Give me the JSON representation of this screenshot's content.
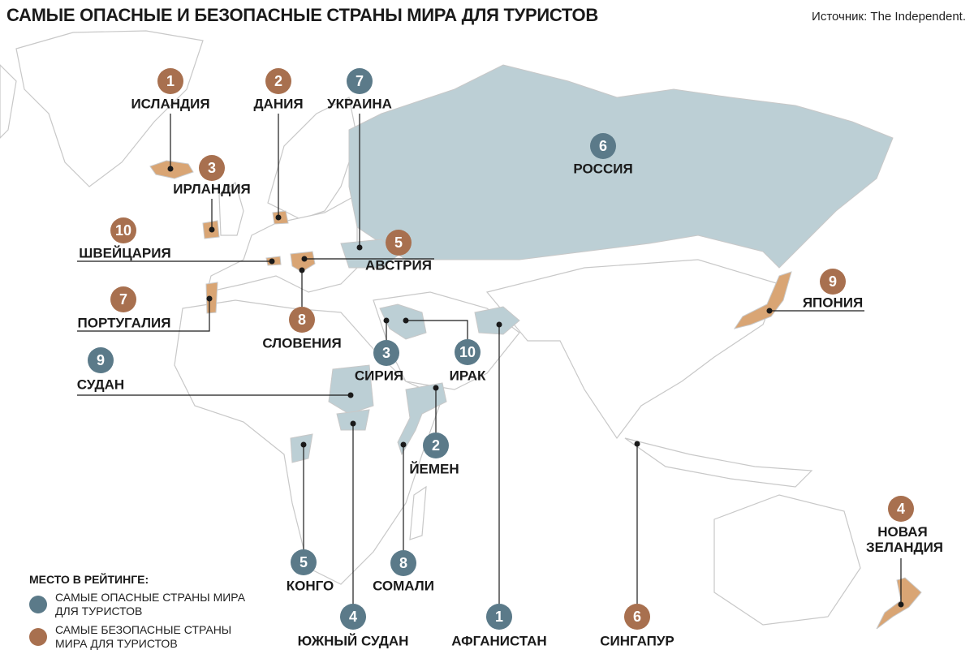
{
  "title": "САМЫЕ ОПАСНЫЕ И БЕЗОПАСНЫЕ СТРАНЫ МИРА ДЛЯ ТУРИСТОВ",
  "source": "Источник: The Independent.",
  "colors": {
    "dangerous": "#5b7a89",
    "safe": "#a8704f",
    "dangerous_fill": "#bccfd5",
    "safe_fill": "#d9a574",
    "border": "#c8c8c8"
  },
  "legend": {
    "title": "МЕСТО В РЕЙТИНГЕ:",
    "dangerous": "САМЫЕ ОПАСНЫЕ СТРАНЫ МИРА ДЛЯ ТУРИСТОВ",
    "safe": "САМЫЕ БЕЗОПАСНЫЕ СТРАНЫ МИРА ДЛЯ ТУРИСТОВ"
  },
  "markers": [
    {
      "rank": "1",
      "country": "ИСЛАНДИЯ",
      "type": "safe"
    },
    {
      "rank": "2",
      "country": "ДАНИЯ",
      "type": "safe"
    },
    {
      "rank": "3",
      "country": "ИРЛАНДИЯ",
      "type": "safe"
    },
    {
      "rank": "4",
      "country": "НОВАЯ ЗЕЛАНДИЯ",
      "type": "safe"
    },
    {
      "rank": "5",
      "country": "АВСТРИЯ",
      "type": "safe"
    },
    {
      "rank": "6",
      "country": "СИНГАПУР",
      "type": "safe"
    },
    {
      "rank": "7",
      "country": "ПОРТУГАЛИЯ",
      "type": "safe"
    },
    {
      "rank": "8",
      "country": "СЛОВЕНИЯ",
      "type": "safe"
    },
    {
      "rank": "9",
      "country": "ЯПОНИЯ",
      "type": "safe"
    },
    {
      "rank": "10",
      "country": "ШВЕЙЦАРИЯ",
      "type": "safe"
    },
    {
      "rank": "1",
      "country": "АФГАНИСТАН",
      "type": "dangerous"
    },
    {
      "rank": "2",
      "country": "ЙЕМЕН",
      "type": "dangerous"
    },
    {
      "rank": "3",
      "country": "СИРИЯ",
      "type": "dangerous"
    },
    {
      "rank": "4",
      "country": "ЮЖНЫЙ СУДАН",
      "type": "dangerous"
    },
    {
      "rank": "5",
      "country": "КОНГО",
      "type": "dangerous"
    },
    {
      "rank": "6",
      "country": "РОССИЯ",
      "type": "dangerous"
    },
    {
      "rank": "7",
      "country": "УКРАИНА",
      "type": "dangerous"
    },
    {
      "rank": "8",
      "country": "СОМАЛИ",
      "type": "dangerous"
    },
    {
      "rank": "9",
      "country": "СУДАН",
      "type": "dangerous"
    },
    {
      "rank": "10",
      "country": "ИРАК",
      "type": "dangerous"
    }
  ]
}
